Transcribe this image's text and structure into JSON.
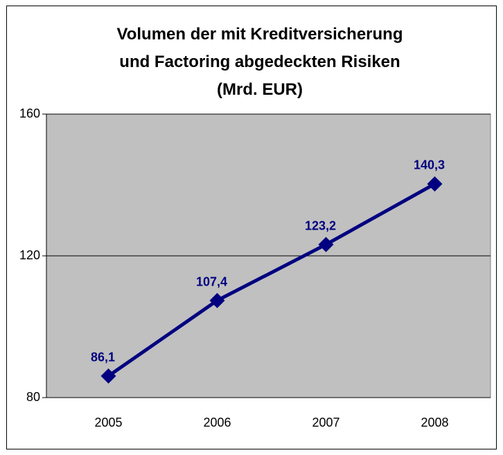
{
  "chart_data": {
    "type": "line",
    "title": "Volumen der mit Kreditversicherung\nund Factoring abgedeckten Risiken\n(Mrd. EUR)",
    "categories": [
      "2005",
      "2006",
      "2007",
      "2008"
    ],
    "series": [
      {
        "color": "#000080",
        "values": [
          86.1,
          107.4,
          123.2,
          140.3
        ],
        "value_labels": [
          "86,1",
          "107,4",
          "123,2",
          "140,3"
        ]
      }
    ],
    "ylim": [
      80,
      160
    ],
    "yticks": [
      80,
      120,
      160
    ],
    "grid": true
  }
}
